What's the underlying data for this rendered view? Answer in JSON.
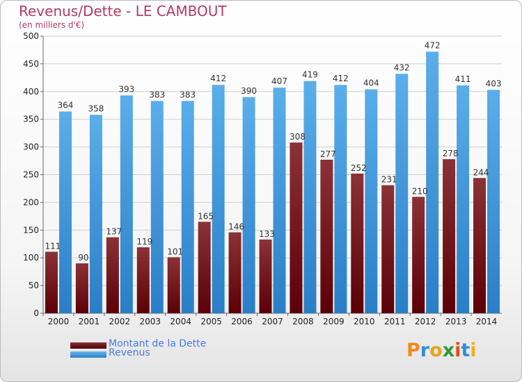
{
  "title": "Revenus/Dette - LE CAMBOUT",
  "subtitle": "(en milliers d'€)",
  "logo_text": "Proxiti",
  "colors": {
    "dette": "#6b0f12",
    "revenus": "#3a93dd",
    "title": "#b33a63",
    "legend_text": "#4a7ae6"
  },
  "legend": [
    {
      "label": "Montant de la Dette",
      "color": "#6b0f12"
    },
    {
      "label": "Revenus",
      "color": "#3a93dd"
    }
  ],
  "chart_data": {
    "type": "bar",
    "title": "Revenus/Dette - LE CAMBOUT",
    "subtitle": "(en milliers d'€)",
    "xlabel": "",
    "ylabel": "",
    "ylim": [
      0,
      500
    ],
    "yticks": [
      0,
      50,
      100,
      150,
      200,
      250,
      300,
      350,
      400,
      450,
      500
    ],
    "grid": true,
    "legend_position": "bottom-left",
    "categories": [
      "2000",
      "2001",
      "2002",
      "2003",
      "2004",
      "2005",
      "2006",
      "2007",
      "2008",
      "2009",
      "2010",
      "2011",
      "2012",
      "2013",
      "2014"
    ],
    "series": [
      {
        "name": "Montant de la Dette",
        "values": [
          111,
          90,
          137,
          119,
          101,
          165,
          146,
          133,
          308,
          277,
          252,
          231,
          210,
          278,
          244
        ]
      },
      {
        "name": "Revenus",
        "values": [
          364,
          358,
          393,
          383,
          383,
          412,
          390,
          407,
          419,
          412,
          404,
          432,
          472,
          411,
          403
        ]
      }
    ]
  }
}
